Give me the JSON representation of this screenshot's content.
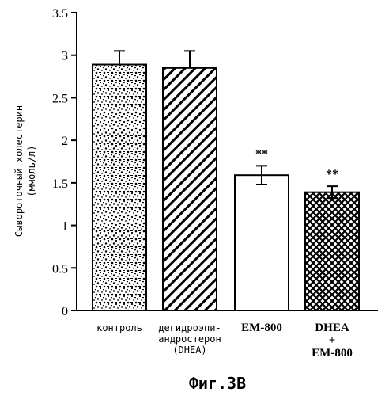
{
  "chart_data": {
    "type": "bar",
    "ylabel_lines": [
      "Сывороточный холестерин",
      "(ммоль/л)"
    ],
    "ylim": [
      0,
      3.5
    ],
    "yticks": [
      "0",
      "0.5",
      "1",
      "1.5",
      "2",
      "2.5",
      "3",
      "3.5"
    ],
    "ytick_values": [
      0,
      0.5,
      1,
      1.5,
      2,
      2.5,
      3,
      3.5
    ],
    "categories": [
      {
        "lines": [
          "контроль"
        ],
        "serif": false
      },
      {
        "lines": [
          "дегидроэпи-",
          "андростерон",
          "(DHEA)"
        ],
        "serif": false
      },
      {
        "lines": [
          "EM-800"
        ],
        "serif": true
      },
      {
        "lines": [
          "DHEA",
          "+",
          "EM-800"
        ],
        "serif": true
      }
    ],
    "values": [
      2.89,
      2.85,
      1.59,
      1.39
    ],
    "errors": [
      0.16,
      0.2,
      0.11,
      0.07
    ],
    "fills": [
      "dotted",
      "diagonal-hatch",
      "white",
      "crosshatch"
    ],
    "annotations": [
      "",
      "",
      "**",
      "**"
    ],
    "title": "Фиг.3В"
  }
}
